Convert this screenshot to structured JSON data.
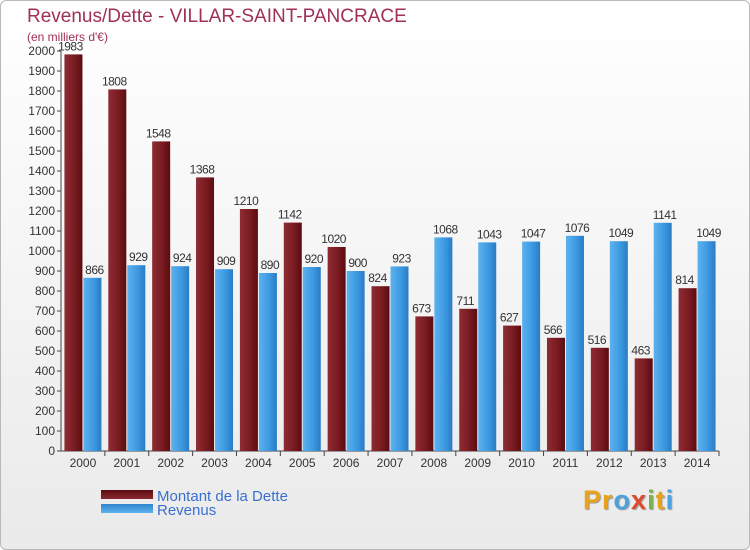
{
  "chart_data": {
    "type": "bar",
    "title": "Revenus/Dette - VILLAR-SAINT-PANCRACE",
    "subtitle": "(en milliers d'€)",
    "categories": [
      "2000",
      "2001",
      "2002",
      "2003",
      "2004",
      "2005",
      "2006",
      "2007",
      "2008",
      "2009",
      "2010",
      "2011",
      "2012",
      "2013",
      "2014"
    ],
    "series": [
      {
        "name": "Montant de la Dette",
        "color": "#7a1c22",
        "values": [
          1983,
          1808,
          1548,
          1368,
          1210,
          1142,
          1020,
          824,
          673,
          711,
          627,
          566,
          516,
          463,
          814
        ]
      },
      {
        "name": "Revenus",
        "color": "#3d9ae2",
        "values": [
          866,
          929,
          924,
          909,
          890,
          920,
          900,
          923,
          1068,
          1043,
          1047,
          1076,
          1049,
          1141,
          1049
        ]
      }
    ],
    "ylim": [
      0,
      2000
    ],
    "yticks": [
      0,
      100,
      200,
      300,
      400,
      500,
      600,
      700,
      800,
      900,
      1000,
      1100,
      1200,
      1300,
      1400,
      1500,
      1600,
      1700,
      1800,
      1900,
      2000
    ],
    "grid": false,
    "legend": "bottom-left"
  },
  "logo_letters": [
    "P",
    "r",
    "o",
    "x",
    "i",
    "t",
    "i"
  ],
  "logo_colors": [
    "#e8a21c",
    "#e8a21c",
    "#4aa3df",
    "#e04a2a",
    "#7cb342",
    "#e8a21c",
    "#4aa3df"
  ]
}
